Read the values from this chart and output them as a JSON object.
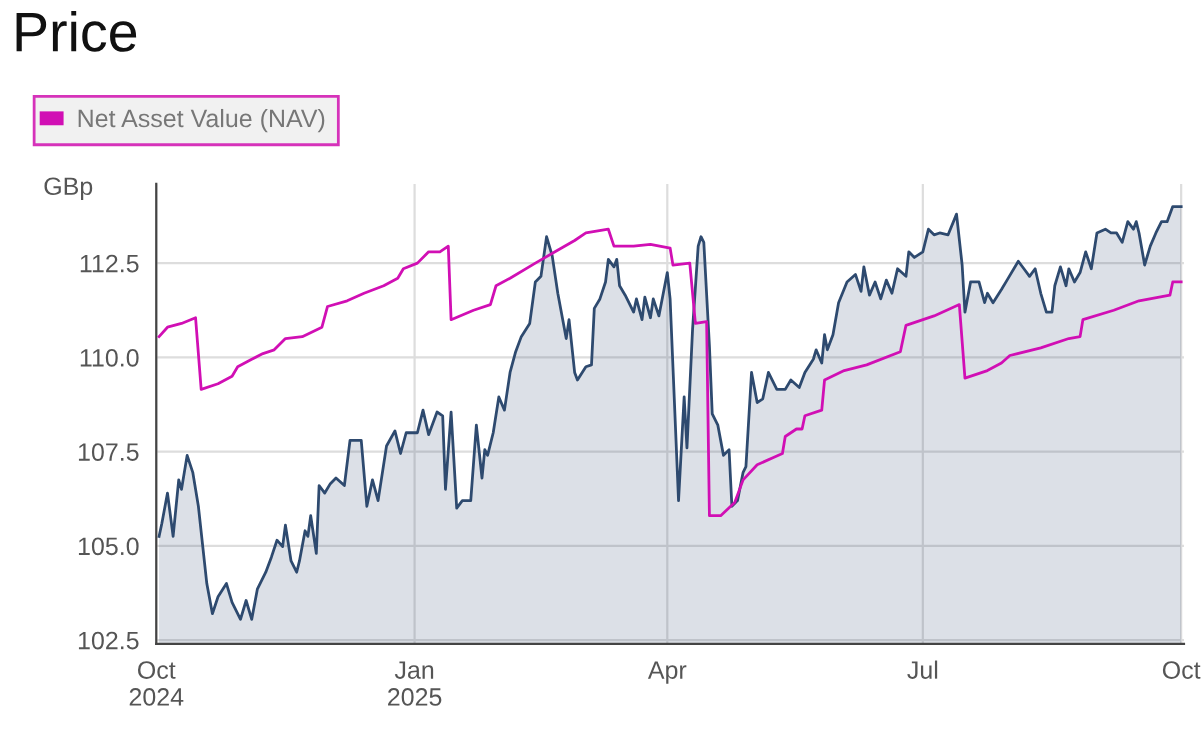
{
  "chart_data": {
    "type": "area",
    "title": "Price",
    "ylabel": "GBp",
    "ylim": [
      102.4,
      114.6
    ],
    "yticks": [
      102.5,
      {
        "value": 105,
        "label": "105.0"
      },
      107.5,
      {
        "value": 110,
        "label": "110.0"
      },
      112.5
    ],
    "xlim": [
      "2024-10-01",
      "2025-10-02"
    ],
    "xticks": [
      {
        "value": "2024-10-01",
        "label": "Oct\n2024"
      },
      {
        "value": "2025-01-01",
        "label": "Jan\n2025"
      },
      {
        "value": "2025-04-01",
        "label": "Apr"
      },
      {
        "value": "2025-07-01",
        "label": "Jul"
      },
      {
        "value": "2025-10-01",
        "label": "Oct"
      }
    ],
    "grid": true,
    "legend": "top left",
    "series": [
      {
        "color": "#2e4a6f",
        "x": [
          "2024-10-02",
          "2024-10-03",
          "2024-10-05",
          "2024-10-07",
          "2024-10-09",
          "2024-10-10",
          "2024-10-12",
          "2024-10-14",
          "2024-10-16",
          "2024-10-19",
          "2024-10-21",
          "2024-10-23",
          "2024-10-26",
          "2024-10-28",
          "2024-10-31",
          "2024-11-02",
          "2024-11-04",
          "2024-11-06",
          "2024-11-09",
          "2024-11-11",
          "2024-11-13",
          "2024-11-15",
          "2024-11-16",
          "2024-11-18",
          "2024-11-20",
          "2024-11-21",
          "2024-11-23",
          "2024-11-24",
          "2024-11-25",
          "2024-11-27",
          "2024-11-28",
          "2024-11-30",
          "2024-12-02",
          "2024-12-04",
          "2024-12-07",
          "2024-12-09",
          "2024-12-13",
          "2024-12-15",
          "2024-12-17",
          "2024-12-19",
          "2024-12-22",
          "2024-12-25",
          "2024-12-27",
          "2024-12-29",
          "2025-01-02",
          "2025-01-04",
          "2025-01-06",
          "2025-01-09",
          "2025-01-11",
          "2025-01-12",
          "2025-01-14",
          "2025-01-16",
          "2025-01-18",
          "2025-01-21",
          "2025-01-23",
          "2025-01-25",
          "2025-01-26",
          "2025-01-27",
          "2025-01-29",
          "2025-01-31",
          "2025-02-02",
          "2025-02-04",
          "2025-02-06",
          "2025-02-08",
          "2025-02-11",
          "2025-02-13",
          "2025-02-15",
          "2025-02-17",
          "2025-02-19",
          "2025-02-21",
          "2025-02-24",
          "2025-02-25",
          "2025-02-27",
          "2025-02-28",
          "2025-03-03",
          "2025-03-05",
          "2025-03-06",
          "2025-03-08",
          "2025-03-10",
          "2025-03-11",
          "2025-03-13",
          "2025-03-14",
          "2025-03-15",
          "2025-03-17",
          "2025-03-20",
          "2025-03-21",
          "2025-03-23",
          "2025-03-24",
          "2025-03-26",
          "2025-03-27",
          "2025-03-29",
          "2025-04-01",
          "2025-04-02",
          "2025-04-05",
          "2025-04-07",
          "2025-04-08",
          "2025-04-10",
          "2025-04-12",
          "2025-04-13",
          "2025-04-14",
          "2025-04-16",
          "2025-04-17",
          "2025-04-19",
          "2025-04-21",
          "2025-04-23",
          "2025-04-24",
          "2025-04-26",
          "2025-04-28",
          "2025-04-29",
          "2025-05-01",
          "2025-05-03",
          "2025-05-05",
          "2025-05-07",
          "2025-05-10",
          "2025-05-13",
          "2025-05-15",
          "2025-05-18",
          "2025-05-20",
          "2025-05-23",
          "2025-05-24",
          "2025-05-26",
          "2025-05-27",
          "2025-05-28",
          "2025-05-30",
          "2025-06-01",
          "2025-06-04",
          "2025-06-07",
          "2025-06-09",
          "2025-06-10",
          "2025-06-12",
          "2025-06-14",
          "2025-06-16",
          "2025-06-18",
          "2025-06-20",
          "2025-06-22",
          "2025-06-25",
          "2025-06-26",
          "2025-06-28",
          "2025-07-01",
          "2025-07-03",
          "2025-07-05",
          "2025-07-07",
          "2025-07-10",
          "2025-07-13",
          "2025-07-15",
          "2025-07-16",
          "2025-07-18",
          "2025-07-21",
          "2025-07-23",
          "2025-07-24",
          "2025-07-26",
          "2025-07-29",
          "2025-07-31",
          "2025-08-04",
          "2025-08-06",
          "2025-08-08",
          "2025-08-10",
          "2025-08-12",
          "2025-08-14",
          "2025-08-16",
          "2025-08-17",
          "2025-08-19",
          "2025-08-21",
          "2025-08-22",
          "2025-08-24",
          "2025-08-26",
          "2025-08-28",
          "2025-08-30",
          "2025-09-01",
          "2025-09-04",
          "2025-09-06",
          "2025-09-08",
          "2025-09-10",
          "2025-09-12",
          "2025-09-14",
          "2025-09-15",
          "2025-09-16",
          "2025-09-18",
          "2025-09-20",
          "2025-09-22",
          "2025-09-24",
          "2025-09-26",
          "2025-09-28",
          "2025-10-01"
        ],
        "values": [
          105.25,
          105.6,
          106.4,
          105.25,
          106.75,
          106.5,
          107.4,
          106.95,
          106.05,
          104.0,
          103.2,
          103.65,
          104.0,
          103.5,
          103.05,
          103.55,
          103.05,
          103.85,
          104.3,
          104.7,
          105.15,
          104.98,
          105.55,
          104.6,
          104.3,
          104.6,
          105.4,
          105.25,
          105.8,
          104.8,
          106.6,
          106.4,
          106.65,
          106.8,
          106.6,
          107.8,
          107.8,
          106.05,
          106.75,
          106.2,
          107.65,
          108.05,
          107.45,
          108.0,
          108.0,
          108.6,
          107.95,
          108.55,
          108.45,
          106.5,
          108.55,
          106.0,
          106.2,
          106.2,
          108.2,
          106.8,
          107.55,
          107.4,
          108.0,
          108.95,
          108.6,
          109.6,
          110.15,
          110.55,
          110.9,
          112.0,
          112.15,
          113.2,
          112.7,
          111.7,
          110.5,
          111.0,
          109.6,
          109.4,
          109.75,
          109.8,
          111.3,
          111.55,
          112.0,
          112.6,
          112.4,
          112.6,
          111.9,
          111.65,
          111.2,
          111.55,
          111.0,
          111.6,
          111.05,
          111.55,
          111.1,
          112.25,
          111.55,
          106.2,
          108.95,
          107.6,
          110.75,
          112.95,
          113.2,
          113.05,
          110.3,
          108.5,
          108.2,
          107.4,
          107.55,
          106.05,
          106.2,
          106.95,
          107.1,
          109.6,
          108.8,
          108.9,
          109.6,
          109.15,
          109.15,
          109.4,
          109.2,
          109.6,
          109.95,
          110.2,
          109.85,
          110.6,
          110.2,
          110.6,
          111.45,
          112.0,
          112.2,
          111.75,
          112.4,
          111.65,
          112.0,
          111.55,
          112.05,
          111.7,
          112.35,
          112.15,
          112.8,
          112.65,
          112.8,
          113.4,
          113.25,
          113.3,
          113.25,
          113.8,
          112.45,
          111.2,
          112.0,
          112.0,
          111.45,
          111.7,
          111.45,
          111.8,
          112.05,
          112.55,
          112.35,
          112.15,
          112.35,
          111.7,
          111.2,
          111.2,
          111.9,
          112.4,
          111.9,
          112.35,
          112.0,
          112.25,
          112.8,
          112.35,
          113.3,
          113.4,
          113.3,
          113.3,
          113.05,
          113.6,
          113.4,
          113.6,
          113.3,
          112.45,
          112.95,
          113.3,
          113.6,
          113.6,
          114.0,
          114.0
        ]
      },
      {
        "type": "line",
        "name": "Net Asset Value (NAV)",
        "color": "#d10fb4",
        "x": [
          "2024-10-02",
          "2024-10-05",
          "2024-10-10",
          "2024-10-15",
          "2024-10-17",
          "2024-10-23",
          "2024-10-28",
          "2024-10-30",
          "2024-11-04",
          "2024-11-08",
          "2024-11-12",
          "2024-11-16",
          "2024-11-22",
          "2024-11-29",
          "2024-12-01",
          "2024-12-08",
          "2024-12-14",
          "2024-12-21",
          "2024-12-26",
          "2024-12-28",
          "2025-01-02",
          "2025-01-06",
          "2025-01-10",
          "2025-01-13",
          "2025-01-14",
          "2025-01-22",
          "2025-01-28",
          "2025-01-30",
          "2025-02-04",
          "2025-02-13",
          "2025-02-20",
          "2025-02-27",
          "2025-03-03",
          "2025-03-11",
          "2025-03-13",
          "2025-03-20",
          "2025-03-26",
          "2025-04-02",
          "2025-04-03",
          "2025-04-09",
          "2025-04-11",
          "2025-04-15",
          "2025-04-16",
          "2025-04-20",
          "2025-04-25",
          "2025-04-28",
          "2025-05-03",
          "2025-05-09",
          "2025-05-12",
          "2025-05-13",
          "2025-05-17",
          "2025-05-19",
          "2025-05-20",
          "2025-05-26",
          "2025-05-27",
          "2025-06-03",
          "2025-06-11",
          "2025-06-23",
          "2025-06-25",
          "2025-07-05",
          "2025-07-14",
          "2025-07-16",
          "2025-07-24",
          "2025-07-29",
          "2025-08-01",
          "2025-08-12",
          "2025-08-22",
          "2025-08-26",
          "2025-08-27",
          "2025-09-07",
          "2025-09-16",
          "2025-09-27",
          "2025-09-28",
          "2025-10-01"
        ],
        "values": [
          110.55,
          110.8,
          110.9,
          111.05,
          109.15,
          109.3,
          109.5,
          109.75,
          109.95,
          110.1,
          110.2,
          110.5,
          110.55,
          110.8,
          111.35,
          111.5,
          111.7,
          111.9,
          112.1,
          112.35,
          112.5,
          112.8,
          112.8,
          112.95,
          111.0,
          111.25,
          111.4,
          111.9,
          112.1,
          112.5,
          112.8,
          113.1,
          113.3,
          113.4,
          112.95,
          112.95,
          113.0,
          112.9,
          112.45,
          112.5,
          110.9,
          110.95,
          105.8,
          105.8,
          106.15,
          106.75,
          107.15,
          107.35,
          107.45,
          107.9,
          108.1,
          108.1,
          108.45,
          108.6,
          109.4,
          109.65,
          109.8,
          110.15,
          110.85,
          111.1,
          111.4,
          109.45,
          109.65,
          109.85,
          110.05,
          110.25,
          110.5,
          110.55,
          111.0,
          111.25,
          111.5,
          111.65,
          112.0,
          112.0
        ]
      }
    ]
  }
}
